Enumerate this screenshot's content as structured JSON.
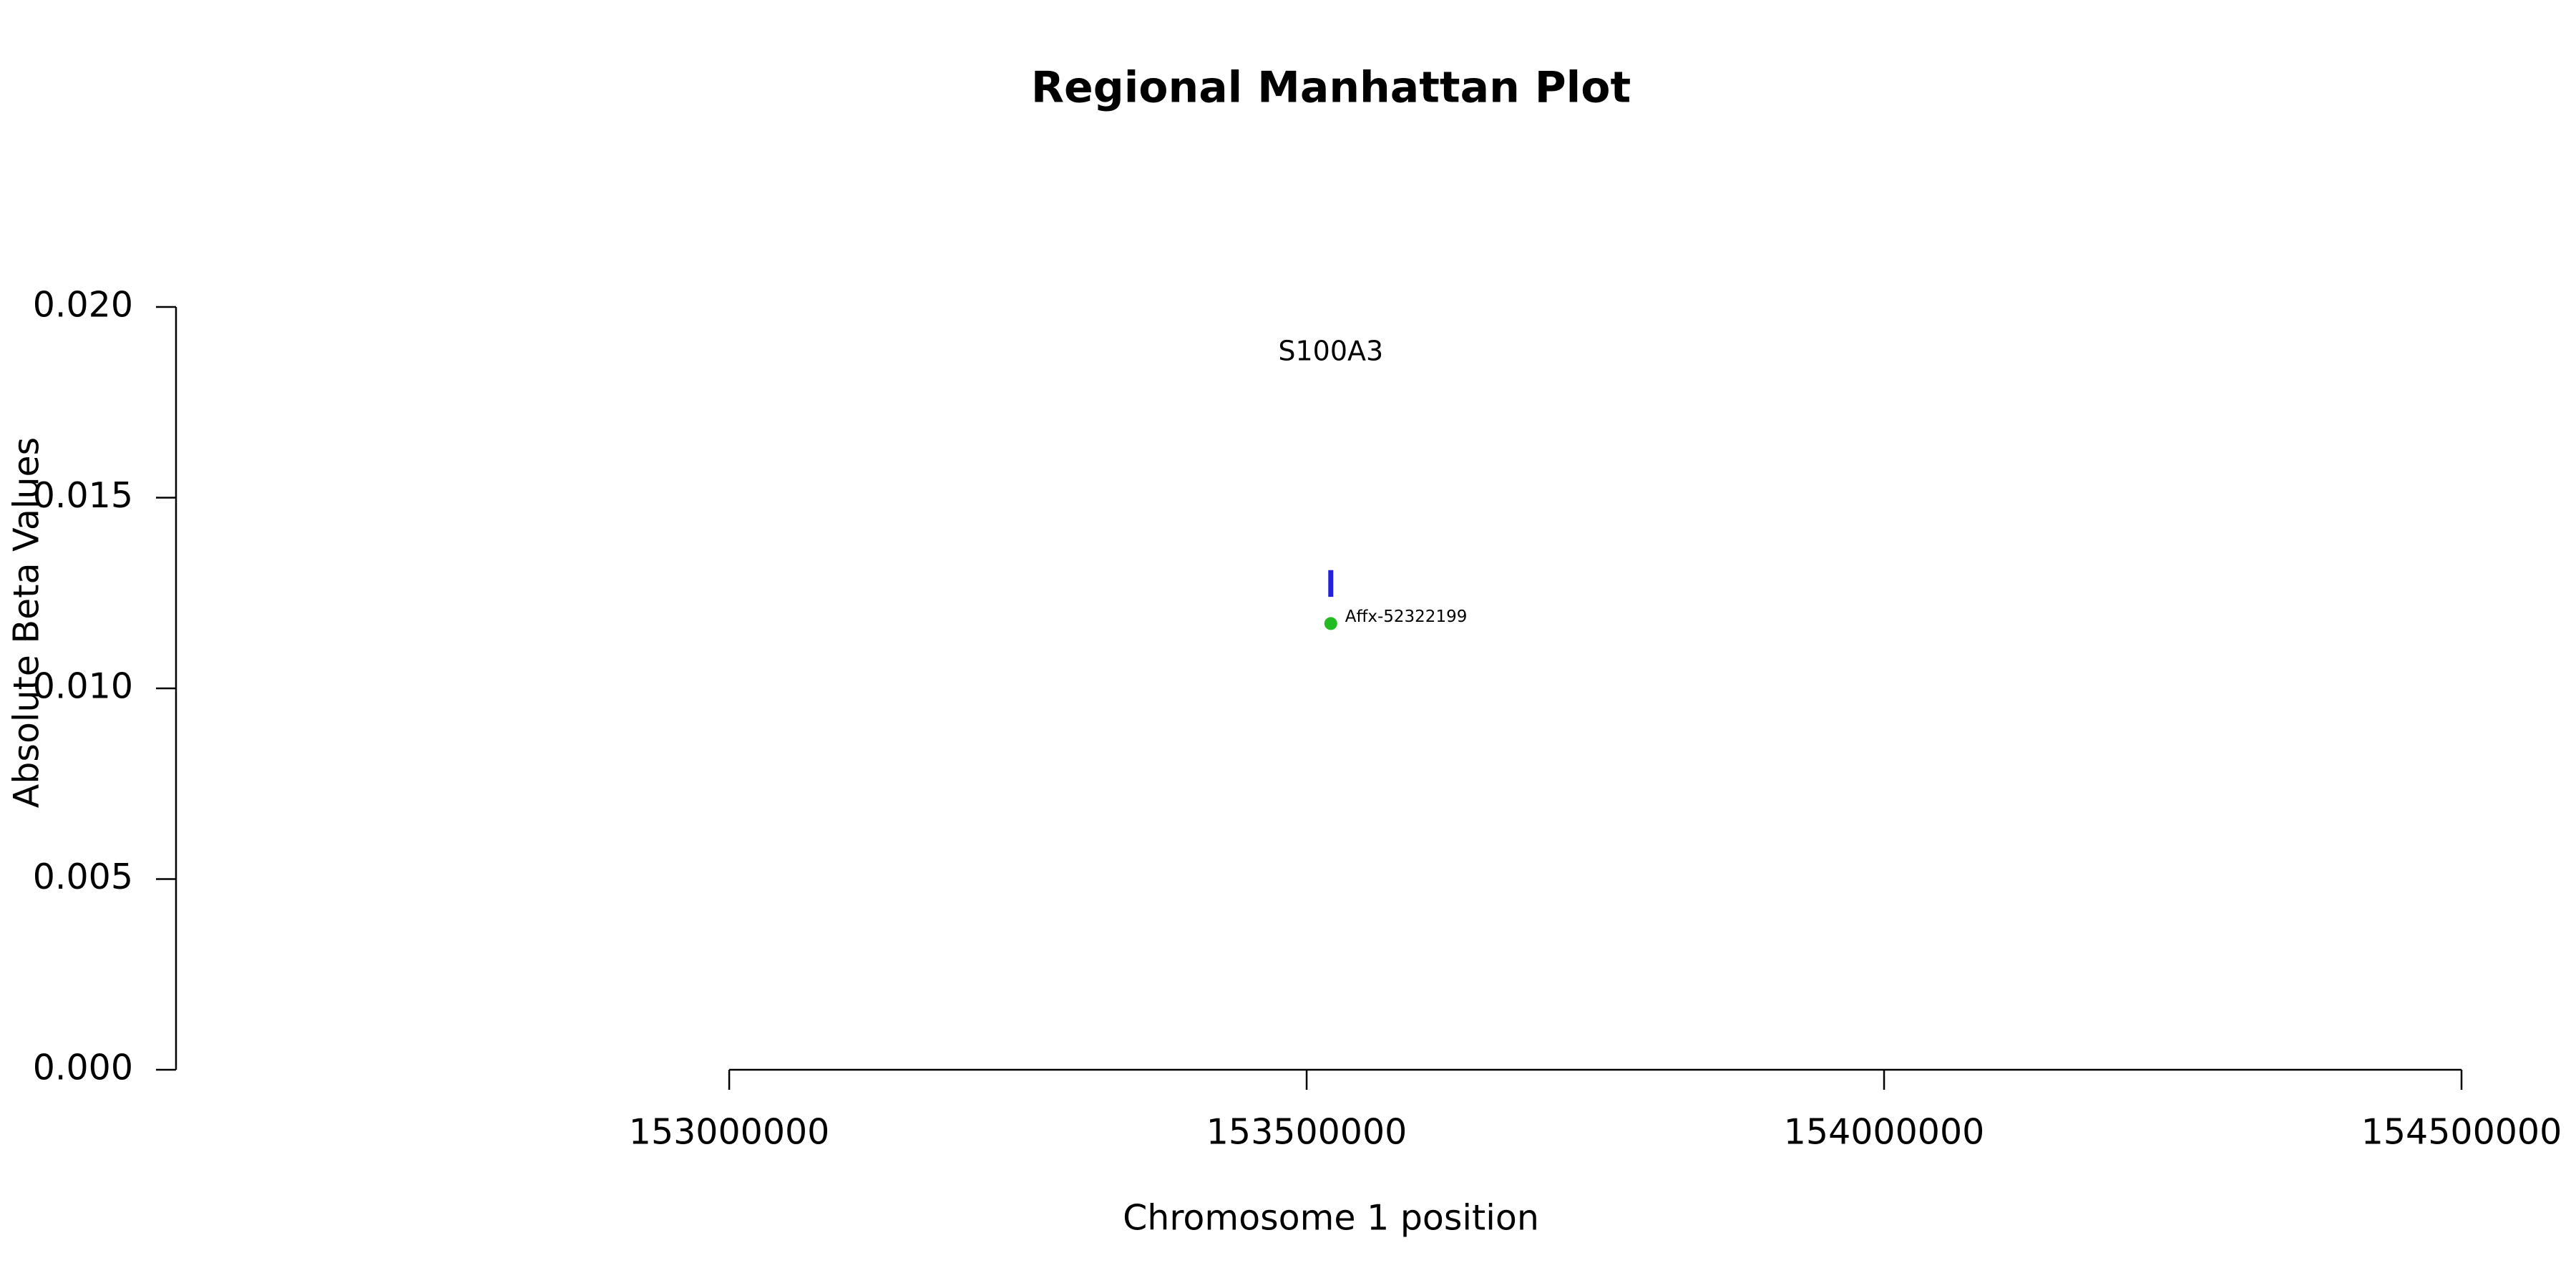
{
  "chart_data": {
    "type": "scatter",
    "title": "Regional Manhattan Plot",
    "x_label": "Chromosome 1 position",
    "y_label": "Absolute Beta Values",
    "xlim": [
      152521000,
      154500000
    ],
    "ylim": [
      0,
      0.02
    ],
    "xticks": [
      153000000,
      153500000,
      154000000,
      154500000
    ],
    "yticks": [
      {
        "value": 0,
        "label": "0.000"
      },
      {
        "value": 0.005,
        "label": "0.005"
      },
      {
        "value": 0.01,
        "label": "0.010"
      },
      {
        "value": 0.015,
        "label": "0.015"
      },
      {
        "value": 0.02,
        "label": "0.020"
      }
    ],
    "series": [
      {
        "color": "#22bb22",
        "x": [
          153520900
        ],
        "values": [
          0.0117
        ],
        "point_labels": [
          "Affx-52322199"
        ]
      }
    ],
    "genes": [
      {
        "name": "S100A3",
        "position": 153520900,
        "marker": [
          0.0124,
          0.0131
        ],
        "label_y": 0.0188,
        "color": "#2222dd"
      }
    ]
  }
}
